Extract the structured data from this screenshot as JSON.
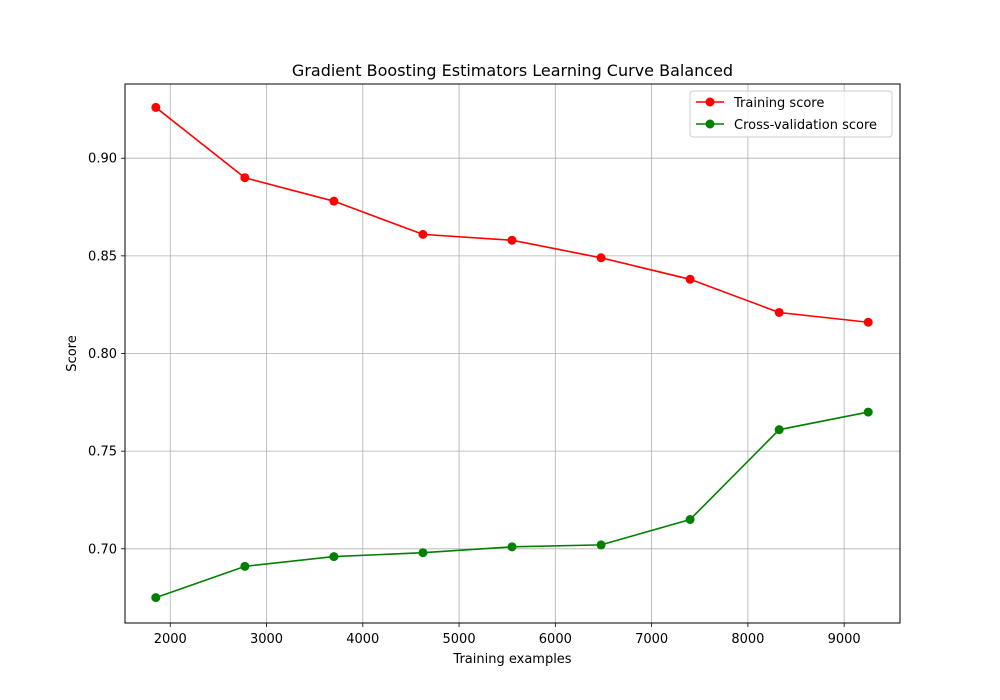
{
  "chart_data": {
    "type": "line",
    "title": "Gradient Boosting Estimators Learning Curve Balanced",
    "xlabel": "Training examples",
    "ylabel": "Score",
    "xlim": [
      1530,
      9580
    ],
    "ylim": [
      0.662,
      0.938
    ],
    "xticks": [
      2000,
      3000,
      4000,
      5000,
      6000,
      7000,
      8000,
      9000
    ],
    "xtick_labels": [
      "2000",
      "3000",
      "4000",
      "5000",
      "6000",
      "7000",
      "8000",
      "9000"
    ],
    "yticks": [
      0.7,
      0.75,
      0.8,
      0.85,
      0.9
    ],
    "ytick_labels": [
      "0.70",
      "0.75",
      "0.80",
      "0.85",
      "0.90"
    ],
    "grid": true,
    "legend_position": "top-right",
    "x": [
      1850,
      2775,
      3700,
      4625,
      5550,
      6475,
      7400,
      8325,
      9250
    ],
    "series": [
      {
        "name": "Training score",
        "color": "#ff0000",
        "values": [
          0.926,
          0.89,
          0.878,
          0.861,
          0.858,
          0.849,
          0.838,
          0.821,
          0.816
        ]
      },
      {
        "name": "Cross-validation score",
        "color": "#008000",
        "values": [
          0.675,
          0.691,
          0.696,
          0.698,
          0.701,
          0.702,
          0.715,
          0.761,
          0.77
        ]
      }
    ]
  }
}
